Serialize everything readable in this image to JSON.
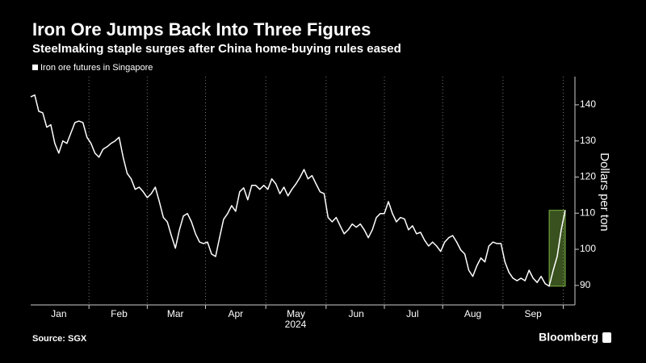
{
  "chart_data": {
    "type": "line",
    "title": "Iron Ore Jumps Back Into Three Figures",
    "subtitle": "Steelmaking staple surges after China home-buying rules eased",
    "ylabel": "Dollars per ton",
    "xlabel": "2024",
    "source": "Source: SGX",
    "brand": "Bloomberg",
    "categories": [
      null,
      null,
      null,
      null,
      null,
      null,
      null,
      "Jan",
      null,
      null,
      null,
      null,
      null,
      null,
      null,
      null,
      null,
      null,
      null,
      null,
      null,
      null,
      "Feb",
      null,
      null,
      null,
      null,
      null,
      null,
      null,
      null,
      null,
      null,
      null,
      null,
      null,
      "Mar",
      null,
      null,
      null,
      null,
      null,
      null,
      null,
      null,
      null,
      null,
      null,
      null,
      null,
      null,
      "Apr",
      null,
      null,
      null,
      null,
      null,
      null,
      null,
      null,
      null,
      null,
      null,
      null,
      null,
      null,
      "May",
      null,
      null,
      null,
      null,
      null,
      null,
      null,
      null,
      null,
      null,
      null,
      null,
      null,
      null,
      "Jun",
      null,
      null,
      null,
      null,
      null,
      null,
      null,
      null,
      null,
      null,
      null,
      null,
      null,
      "Jul",
      null,
      null,
      null,
      null,
      null,
      null,
      null,
      null,
      null,
      null,
      null,
      null,
      null,
      null,
      "Aug",
      null,
      null,
      null,
      null,
      null,
      null,
      null,
      null,
      null,
      null,
      null,
      null,
      null,
      null,
      "Sep",
      null,
      null,
      null,
      null,
      null,
      null,
      null,
      null
    ],
    "series": [
      {
        "name": "Iron ore futures in Singapore",
        "color": "#ffffff",
        "values": [
          142.2,
          142.7,
          138.2,
          137.8,
          133.8,
          134.5,
          129.3,
          126.6,
          130,
          129.3,
          132.2,
          135.1,
          135.5,
          135.1,
          131,
          129.3,
          126.6,
          125.5,
          127.7,
          128.4,
          129.3,
          130,
          131,
          125.5,
          121,
          119.5,
          116.6,
          117.2,
          115.9,
          114.3,
          115.4,
          117.2,
          113.2,
          108.8,
          107.6,
          103.8,
          100.3,
          105.4,
          109.2,
          109.9,
          107.6,
          104.3,
          102,
          101.6,
          102,
          98.7,
          98,
          103.2,
          108.3,
          109.9,
          112.1,
          110.5,
          115.9,
          117,
          113.7,
          117.7,
          117.7,
          116.6,
          117.7,
          116.6,
          119.5,
          118.1,
          115.4,
          117.2,
          114.8,
          116.6,
          118.1,
          119.9,
          122.1,
          119.5,
          120.4,
          118.1,
          115.9,
          115.4,
          108.8,
          107.6,
          108.8,
          106.5,
          104.3,
          105.4,
          107,
          106.1,
          107,
          105.4,
          103.2,
          105.4,
          108.8,
          109.9,
          109.9,
          113.2,
          109.9,
          107.6,
          108.8,
          108.4,
          105.4,
          106.5,
          104.3,
          104.7,
          102.5,
          100.9,
          102,
          100.9,
          99.4,
          102,
          103.2,
          103.8,
          102,
          99.8,
          98.7,
          94.2,
          92.5,
          95.4,
          97.6,
          96.5,
          100.9,
          102,
          101.6,
          101.6,
          96.5,
          93.6,
          92,
          91.3,
          92,
          91.3,
          94.2,
          92,
          90.8,
          92.5,
          90.5,
          89.8,
          94.2,
          98,
          105.4,
          110.8
        ]
      }
    ],
    "highlight_from": 129,
    "highlight_color": "#7cb342",
    "ylim": [
      84.6,
      147.8
    ],
    "yticks": [
      90,
      100,
      110,
      120,
      130,
      140
    ],
    "y_axis_side": "right",
    "grid": true
  }
}
